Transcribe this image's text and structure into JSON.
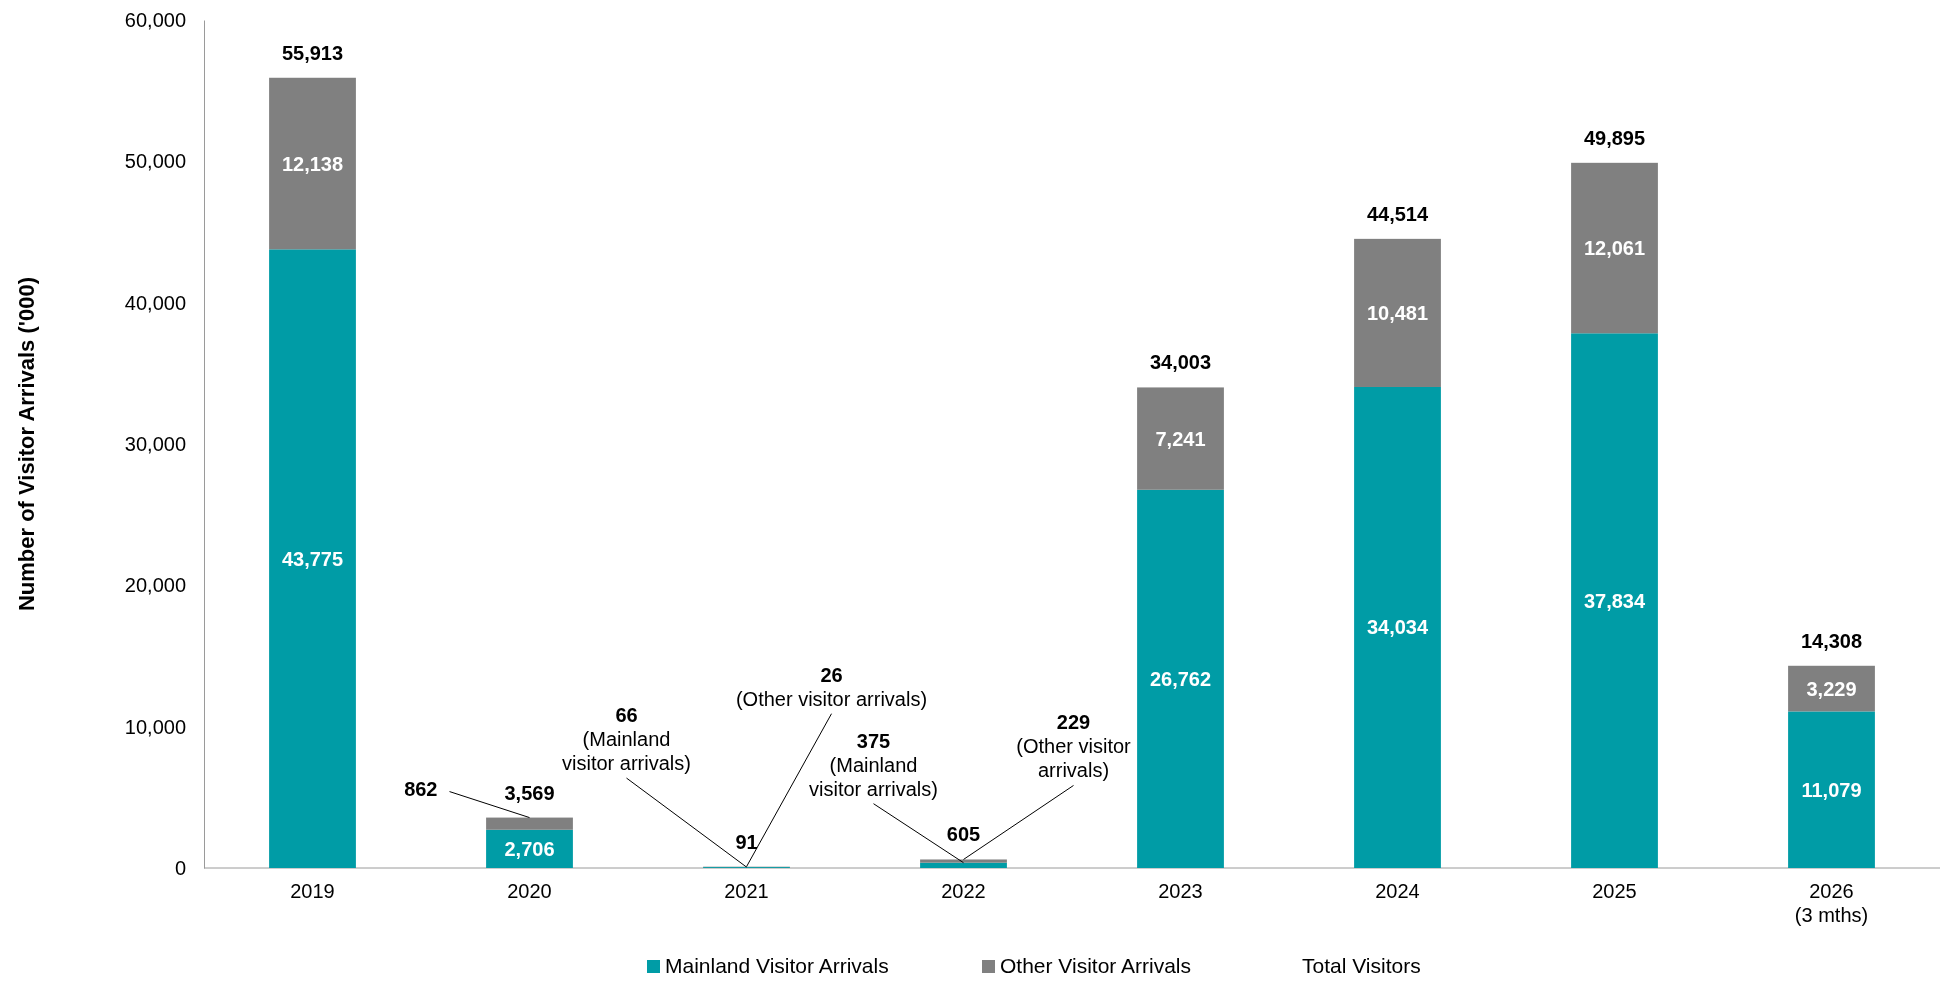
{
  "chart_data": {
    "type": "bar",
    "stacked": true,
    "ylabel": "Number of Visitor Arrivals ('000)",
    "categories": [
      "2019",
      "2020",
      "2021",
      "2022",
      "2023",
      "2024",
      "2025",
      "2026\n(3 mths)"
    ],
    "series": [
      {
        "name": "Mainland Visitor Arrivals",
        "color": "#009ca6",
        "values": [
          43775,
          2706,
          66,
          375,
          26762,
          34034,
          37834,
          11079
        ],
        "value_labels": [
          "43,775",
          "2,706",
          null,
          null,
          "26,762",
          "34,034",
          "37,834",
          "11,079"
        ]
      },
      {
        "name": "Other Visitor Arrivals",
        "color": "#808080",
        "values": [
          12138,
          862,
          26,
          229,
          7241,
          10481,
          12061,
          3229
        ],
        "value_labels": [
          "12,138",
          null,
          null,
          null,
          "7,241",
          "10,481",
          "12,061",
          "3,229"
        ]
      },
      {
        "name": "Total Visitors",
        "type": "line",
        "values": [
          null,
          null,
          null,
          null,
          null,
          null,
          null,
          null
        ]
      }
    ],
    "totals": [
      "55,913",
      "3,569",
      "91",
      "605",
      "34,003",
      "44,514",
      "49,895",
      "14,308"
    ],
    "ylim": [
      0,
      60000
    ],
    "yticks": [
      {
        "value": 0,
        "label": "0"
      },
      {
        "value": 10000,
        "label": "10,000"
      },
      {
        "value": 20000,
        "label": "20,000"
      },
      {
        "value": 30000,
        "label": "30,000"
      },
      {
        "value": 40000,
        "label": "40,000"
      },
      {
        "value": 50000,
        "label": "50,000"
      },
      {
        "value": 60000,
        "label": "60,000"
      }
    ],
    "grid": false,
    "legend": "bottom",
    "annotations": [
      {
        "text": "862",
        "x": "2020",
        "y": 3568
      },
      {
        "text": "66\n(Mainland\nvisitor arrivals)",
        "x": "2021",
        "y": 66
      },
      {
        "text": "26\n(Other visitor arrivals)",
        "x": "2021",
        "y": 92
      },
      {
        "text": "375\n(Mainland\nvisitor arrivals)",
        "x": "2022",
        "y": 375
      },
      {
        "text": "229\n(Other visitor\narrivals)",
        "x": "2022",
        "y": 604
      }
    ]
  }
}
